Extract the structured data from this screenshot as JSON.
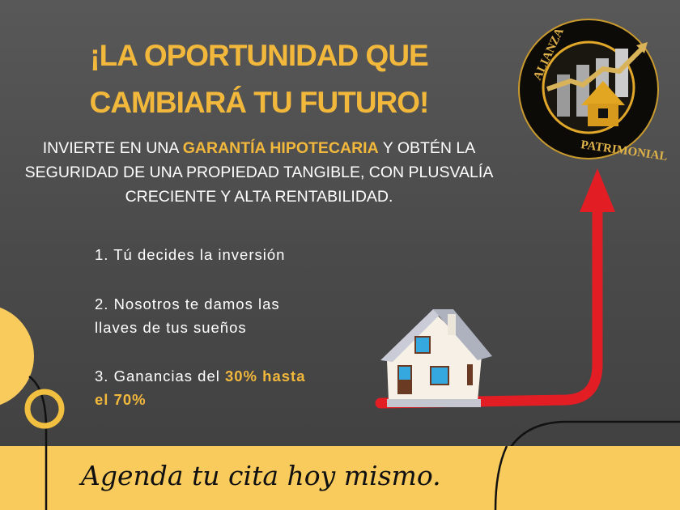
{
  "headline": {
    "line1": "¡LA OPORTUNIDAD QUE",
    "line2": "CAMBIARÁ TU FUTURO!"
  },
  "subheadline": {
    "pre": "INVIERTE EN UNA ",
    "highlight": "GARANTÍA HIPOTECARIA",
    "post": " Y OBTÉN LA SEGURIDAD DE UNA PROPIEDAD TANGIBLE, CON PLUSVALÍA CRECIENTE Y ALTA RENTABILIDAD."
  },
  "steps": [
    {
      "text": "1. Tú decides la inversión"
    },
    {
      "line1": "2. Nosotros te damos las",
      "line2": "llaves de tus sueños"
    },
    {
      "pre": "3. Ganancias del ",
      "highlight1": "30% hasta",
      "highlight2": "el 70%"
    }
  ],
  "logo": {
    "top": "ALIANZA",
    "bottom": "PATRIMONIAL"
  },
  "cta": "Agenda tu cita hoy mismo.",
  "colors": {
    "accent": "#f2b83c",
    "band": "#f9cb5c",
    "arrow": "#e21d24",
    "background": "#4a4a4a"
  }
}
